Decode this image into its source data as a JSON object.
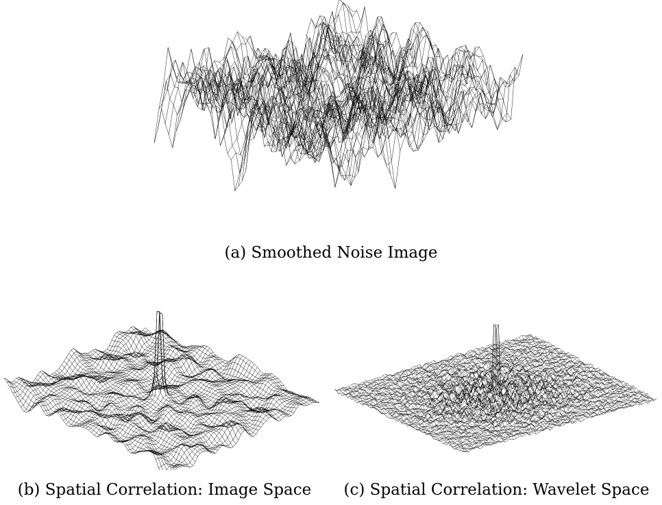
{
  "figure": {
    "panels": [
      {
        "id": "a",
        "caption": "(a) Smoothed Noise Image"
      },
      {
        "id": "b",
        "caption": "(b) Spatial Correlation: Image Space"
      },
      {
        "id": "c",
        "caption": "(c) Spatial Correlation: Wavelet Space"
      }
    ],
    "line_color": "#000000",
    "background": "#ffffff"
  }
}
